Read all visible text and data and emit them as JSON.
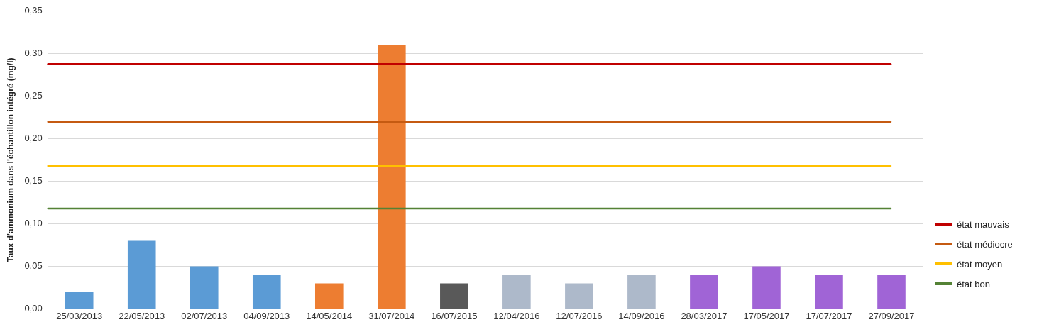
{
  "chart_data": {
    "type": "bar",
    "ylabel": "Taux d'ammonium dans l'échantillon intégré (mg/l)",
    "categories": [
      "25/03/2013",
      "22/05/2013",
      "02/07/2013",
      "04/09/2013",
      "14/05/2014",
      "31/07/2014",
      "16/07/2015",
      "12/04/2016",
      "12/07/2016",
      "14/09/2016",
      "28/03/2017",
      "17/05/2017",
      "17/07/2017",
      "27/09/2017"
    ],
    "values": [
      0.02,
      0.08,
      0.05,
      0.04,
      0.03,
      0.31,
      0.03,
      0.04,
      0.03,
      0.04,
      0.04,
      0.05,
      0.04,
      0.04
    ],
    "colors": [
      "#5b9bd5",
      "#5b9bd5",
      "#5b9bd5",
      "#5b9bd5",
      "#ed7d31",
      "#ed7d31",
      "#595959",
      "#adb9ca",
      "#adb9ca",
      "#adb9ca",
      "#a064d6",
      "#a064d6",
      "#a064d6",
      "#a064d6"
    ],
    "ylim": [
      0,
      0.35
    ],
    "yticks": [
      {
        "value": 0,
        "label": "0,00"
      },
      {
        "value": 0.05,
        "label": "0,05"
      },
      {
        "value": 0.1,
        "label": "0,10"
      },
      {
        "value": 0.15,
        "label": "0,15"
      },
      {
        "value": 0.2,
        "label": "0,20"
      },
      {
        "value": 0.25,
        "label": "0,25"
      },
      {
        "value": 0.3,
        "label": "0,30"
      },
      {
        "value": 0.35,
        "label": "0,35"
      }
    ],
    "grid": "y",
    "legend": "right",
    "ref_lines": [
      {
        "axis": "y",
        "value": 0.288,
        "label": "état mauvais",
        "color": "#c00000"
      },
      {
        "axis": "y",
        "value": 0.22,
        "label": "état médiocre",
        "color": "#c55a11"
      },
      {
        "axis": "y",
        "value": 0.168,
        "label": "état moyen",
        "color": "#ffc000"
      },
      {
        "axis": "y",
        "value": 0.118,
        "label": "état bon",
        "color": "#548235"
      }
    ]
  }
}
